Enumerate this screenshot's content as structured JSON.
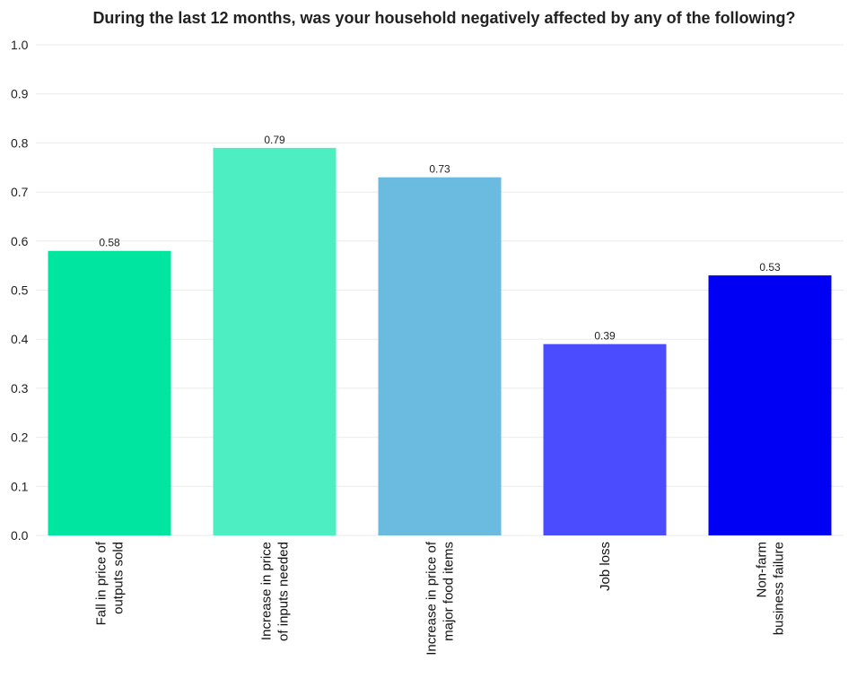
{
  "chart_data": {
    "type": "bar",
    "title": "During the last 12 months, was your household negatively affected by any of the following?",
    "xlabel": "",
    "ylabel": "",
    "ylim": [
      0,
      1.0
    ],
    "yticks": [
      "0.0",
      "0.1",
      "0.2",
      "0.3",
      "0.4",
      "0.5",
      "0.6",
      "0.7",
      "0.8",
      "0.9",
      "1.0"
    ],
    "grid": true,
    "categories": [
      [
        "Fall in price of",
        "outputs sold"
      ],
      [
        "Increase in price",
        "of inputs needed"
      ],
      [
        "Increase in price of",
        "major food items"
      ],
      [
        "Job loss"
      ],
      [
        "Non-farm",
        "business failure"
      ]
    ],
    "values": [
      0.58,
      0.79,
      0.73,
      0.39,
      0.53
    ],
    "value_labels": [
      "0.58",
      "0.79",
      "0.73",
      "0.39",
      "0.53"
    ],
    "colors": [
      "#00e5a0",
      "#4eeec3",
      "#6bbbe0",
      "#4c4cff",
      "#0000f5"
    ]
  }
}
